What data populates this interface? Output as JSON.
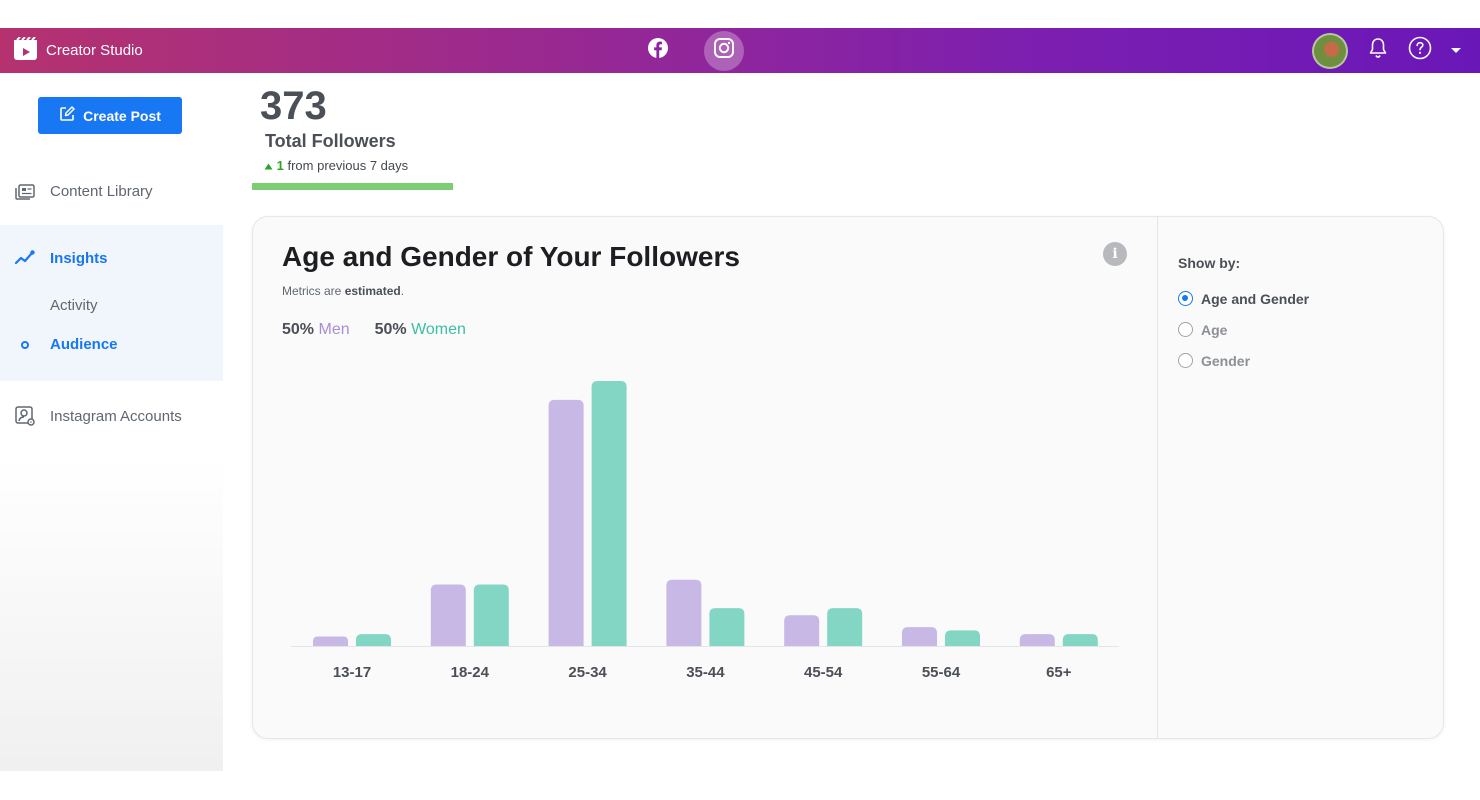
{
  "topbar": {
    "app_title": "Creator Studio",
    "platforms": [
      "facebook-icon",
      "instagram-icon"
    ],
    "active_platform": "Instagram"
  },
  "sidebar": {
    "create_post": "Create Post",
    "items": [
      {
        "label": "Content Library",
        "icon": "content-library-icon"
      },
      {
        "label": "Insights",
        "icon": "insights-icon"
      },
      {
        "label": "Activity"
      },
      {
        "label": "Audience",
        "icon": "dot-icon"
      },
      {
        "label": "Instagram Accounts",
        "icon": "instagram-accounts-icon"
      }
    ]
  },
  "followers": {
    "total": "373",
    "label": "Total Followers",
    "change_value": "1",
    "change_text": "from previous 7 days"
  },
  "card": {
    "title": "Age and Gender of Your Followers",
    "subtitle_prefix": "Metrics are",
    "subtitle_bold": "estimated",
    "subtitle_suffix": ".",
    "men_pct": "50%",
    "men_label": "Men",
    "women_pct": "50%",
    "women_label": "Women"
  },
  "show_by": {
    "title": "Show by:",
    "options": [
      "Age and Gender",
      "Age",
      "Gender"
    ],
    "selected": "Age and Gender"
  },
  "colors": {
    "men": "#c7b8e6",
    "women": "#83d6c4",
    "accent": "#1877f2"
  },
  "chart_data": {
    "type": "bar",
    "categories": [
      "13-17",
      "18-24",
      "25-34",
      "35-44",
      "45-54",
      "55-64",
      "65+"
    ],
    "series": [
      {
        "name": "Men",
        "values": [
          2,
          13,
          52,
          14,
          6.5,
          4,
          2.5
        ]
      },
      {
        "name": "Women",
        "values": [
          2.5,
          13,
          56,
          8,
          8,
          3.3,
          2.5
        ]
      }
    ],
    "ylim": [
      0,
      56
    ]
  }
}
